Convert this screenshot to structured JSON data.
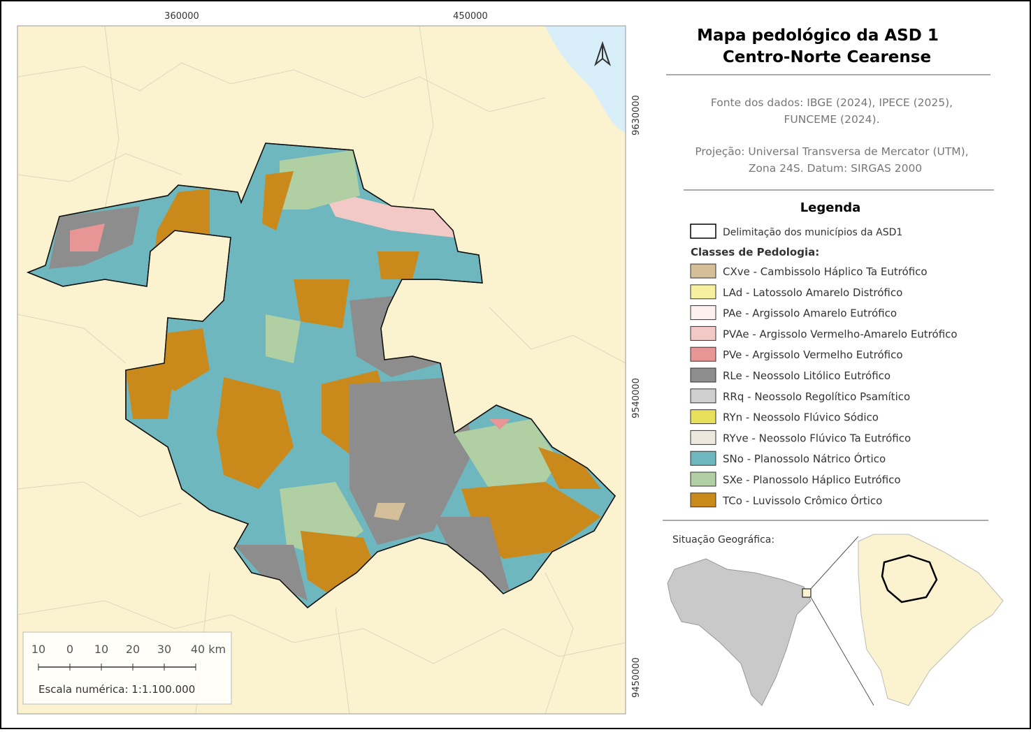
{
  "coordinates": {
    "top": [
      "360000",
      "450000"
    ],
    "right": [
      "9630000",
      "9540000",
      "9450000"
    ]
  },
  "title": [
    "Mapa pedológico da ASD 1",
    "Centro-Norte Cearense"
  ],
  "source": [
    "Fonte dos dados: IBGE (2024), IPECE (2025),",
    "FUNCEME (2024)."
  ],
  "projection": [
    "Projeção: Universal Transversa de Mercator (UTM),",
    "Zona 24S. Datum: SIRGAS 2000"
  ],
  "legend": {
    "title": "Legenda",
    "boundary": "Delimitação dos municípios da ASD1",
    "classes_title": "Classes de Pedologia:",
    "classes": [
      {
        "label": "CXve - Cambissolo Háplico Ta Eutrófico",
        "color": "#d4bf9a"
      },
      {
        "label": "LAd - Latossolo Amarelo Distrófico",
        "color": "#f7f0a0"
      },
      {
        "label": "PAe - Argissolo Amarelo Eutrófico",
        "color": "#fdf1ef"
      },
      {
        "label": "PVAe - Argissolo Vermelho-Amarelo Eutrófico",
        "color": "#f2c9c6"
      },
      {
        "label": "PVe - Argissolo Vermelho Eutrófico",
        "color": "#e89595"
      },
      {
        "label": "RLe - Neossolo Litólico Eutrófico",
        "color": "#8d8d8d"
      },
      {
        "label": "RRq - Neossolo Regolítico Psamítico",
        "color": "#cfcfcf"
      },
      {
        "label": "RYn - Neossolo Flúvico Sódico",
        "color": "#e8e05a"
      },
      {
        "label": "RYve - Neossolo Flúvico Ta Eutrófico",
        "color": "#ece8dc"
      },
      {
        "label": "SNo - Planossolo Nátrico Órtico",
        "color": "#6fb7bf"
      },
      {
        "label": "SXe - Planossolo Háplico Eutrófico",
        "color": "#b0cfa2"
      },
      {
        "label": "TCo - Luvissolo Crômico Órtico",
        "color": "#c98a1b"
      }
    ]
  },
  "scale_bar": {
    "labels": [
      "10",
      "0",
      "10",
      "20",
      "30",
      "40 km"
    ],
    "numeric": "Escala numérica: 1:1.100.000"
  },
  "inset": {
    "title": "Situação Geográfica:"
  }
}
